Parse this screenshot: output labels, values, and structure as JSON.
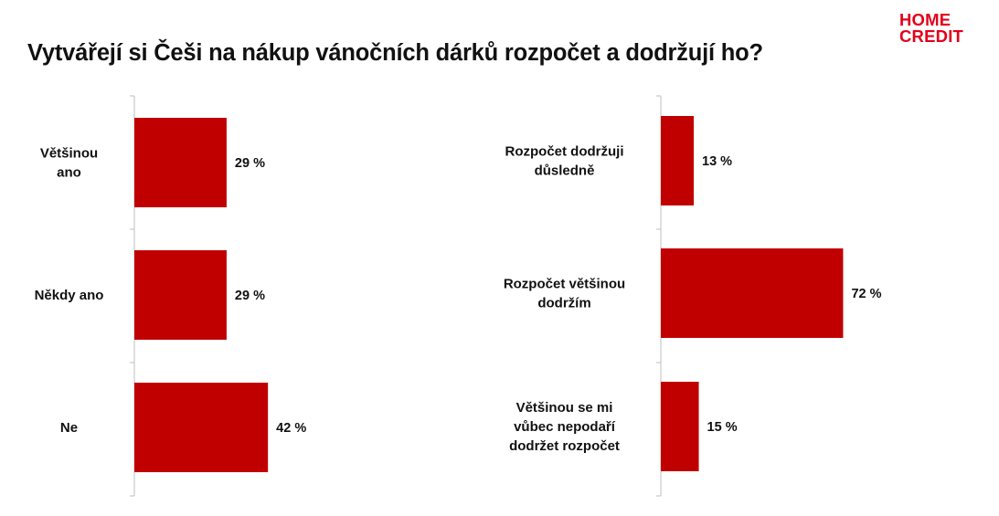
{
  "title": "Vytvářejí si Češi na nákup vánočních dárků rozpočet a dodržují ho?",
  "logo": {
    "line1": "HOME",
    "line2": "CREDIT"
  },
  "colors": {
    "bar": "#c00000",
    "axis": "#bfbfbf",
    "brand": "#e3001b"
  },
  "chart_data": [
    {
      "type": "bar",
      "orientation": "horizontal",
      "categories": [
        "Většinou ano",
        "Někdy ano",
        "Ne"
      ],
      "values": [
        29,
        29,
        42
      ],
      "value_labels": [
        "29 %",
        "29 %",
        "42 %"
      ],
      "unit": "%"
    },
    {
      "type": "bar",
      "orientation": "horizontal",
      "categories": [
        "Rozpočet dodržuji důsledně",
        "Rozpočet většinou dodržím",
        "Většinou se mi vůbec nepodaří dodržet rozpočet"
      ],
      "values": [
        13,
        72,
        15
      ],
      "value_labels": [
        "13 %",
        "72 %",
        "15 %"
      ],
      "unit": "%"
    }
  ]
}
